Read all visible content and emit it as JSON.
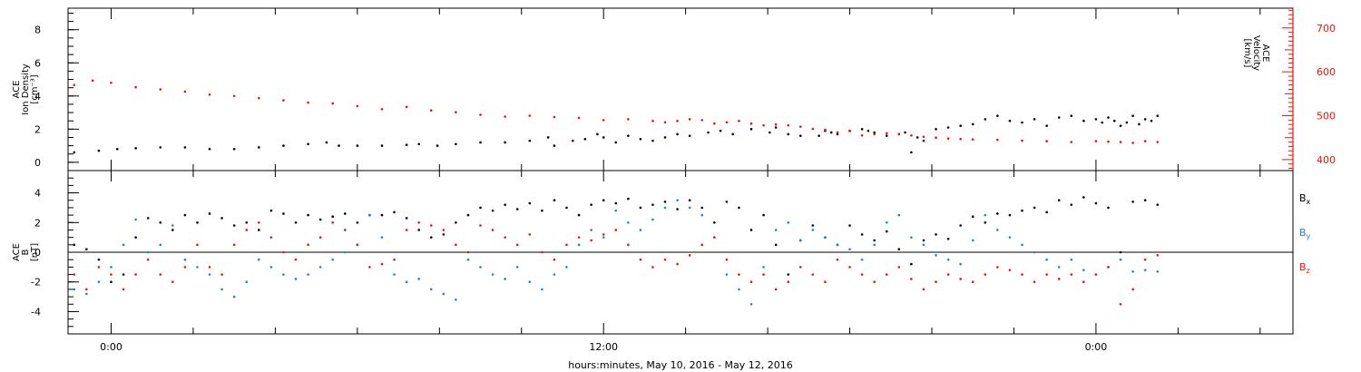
{
  "chart_data": [
    {
      "type": "scatter",
      "panel": "top",
      "ylabel": "ACE\nIon Density\n[cm⁻³]",
      "ylabel_lines": [
        "ACE",
        "Ion Density",
        "[cm⁻³]"
      ],
      "ylim": [
        -0.5,
        9.3
      ],
      "yticks": [
        0,
        2,
        4,
        6,
        8
      ],
      "y2label_lines": [
        "ACE",
        "Velocity",
        "[km/s]"
      ],
      "y2lim": [
        375,
        745
      ],
      "y2ticks": [
        400,
        500,
        600,
        700
      ],
      "series": [
        {
          "name": "",
          "axis": "left",
          "color": "#000000",
          "x": [
            -3.0,
            -1.0,
            0.5,
            2.0,
            4.0,
            6.0,
            8.0,
            10.0,
            12.0,
            14.0,
            16.0,
            17.5,
            18.5,
            20.0,
            22.0,
            24.0,
            25.0,
            26.5,
            28.0,
            30.0,
            32.0,
            34.0,
            35.5,
            36.0,
            37.5,
            38.5,
            39.5,
            40.0,
            41.0,
            42.0,
            43.0,
            44.0,
            45.0,
            46.0,
            47.0,
            48.5,
            49.5,
            50.5,
            52.0,
            53.5,
            54.0,
            55.0,
            56.0,
            57.5,
            58.0,
            58.5,
            59.0,
            60.0,
            61.0,
            61.5,
            62.0,
            63.0,
            64.0,
            64.5,
            65.0,
            65.5,
            66.0,
            67.0,
            68.0,
            69.0,
            70.0,
            71.0,
            72.0,
            73.0,
            74.0,
            75.0,
            76.0,
            77.0,
            78.0,
            79.0,
            80.0,
            80.5,
            81.0,
            81.5,
            82.0,
            82.5,
            83.0,
            83.5,
            84.0,
            84.5,
            85.0
          ],
          "y": [
            0.6,
            0.7,
            0.8,
            0.85,
            0.9,
            0.9,
            0.8,
            0.8,
            0.9,
            1.0,
            1.1,
            1.2,
            1.0,
            1.0,
            1.0,
            1.05,
            1.1,
            1.0,
            1.1,
            1.2,
            1.2,
            1.3,
            1.5,
            1.0,
            1.3,
            1.4,
            1.7,
            1.5,
            1.2,
            1.6,
            1.4,
            1.3,
            1.5,
            1.7,
            1.6,
            1.8,
            1.9,
            1.7,
            2.0,
            1.8,
            2.1,
            1.7,
            1.6,
            1.6,
            1.9,
            1.8,
            1.7,
            1.9,
            2.0,
            1.9,
            1.8,
            1.6,
            1.7,
            1.8,
            0.6,
            1.5,
            1.3,
            2.0,
            2.1,
            2.2,
            2.3,
            2.6,
            2.8,
            2.5,
            2.4,
            2.6,
            2.2,
            2.7,
            2.8,
            2.5,
            2.6,
            2.4,
            2.7,
            2.5,
            2.2,
            2.4,
            2.8,
            2.3,
            2.6,
            2.5,
            2.8
          ]
        },
        {
          "name": "",
          "axis": "right",
          "color": "#e8140c",
          "x": [
            -3.0,
            -1.5,
            0.0,
            2.0,
            4.0,
            6.0,
            8.0,
            10.0,
            12.0,
            14.0,
            16.0,
            18.0,
            20.0,
            22.0,
            24.0,
            26.0,
            28.0,
            30.0,
            32.0,
            34.0,
            36.0,
            38.0,
            40.0,
            42.0,
            44.0,
            45.0,
            46.0,
            47.0,
            48.0,
            49.0,
            50.0,
            51.0,
            52.0,
            53.0,
            54.0,
            55.0,
            56.0,
            57.0,
            58.0,
            59.0,
            60.0,
            61.0,
            62.0,
            63.0,
            64.0,
            65.0,
            66.0,
            67.0,
            68.0,
            69.0,
            70.0,
            72.0,
            74.0,
            76.0,
            78.0,
            80.0,
            81.0,
            82.0,
            83.0,
            84.0,
            85.0
          ],
          "y": [
            570,
            580,
            575,
            565,
            560,
            555,
            548,
            545,
            540,
            535,
            530,
            528,
            522,
            515,
            520,
            512,
            508,
            502,
            498,
            500,
            497,
            495,
            490,
            492,
            488,
            485,
            488,
            492,
            490,
            482,
            485,
            488,
            482,
            478,
            480,
            478,
            475,
            470,
            468,
            462,
            465,
            455,
            458,
            460,
            458,
            455,
            452,
            450,
            448,
            447,
            446,
            445,
            443,
            442,
            440,
            442,
            441,
            440,
            438,
            442,
            440
          ]
        }
      ]
    },
    {
      "type": "scatter",
      "panel": "bottom",
      "ylabel": "ACE\nB\n[nT]",
      "ylabel_lines": [
        "ACE",
        "B",
        "[nT]"
      ],
      "ylim": [
        -5.5,
        5.5
      ],
      "yticks": [
        -4,
        -2,
        0,
        2,
        4
      ],
      "zero_line": true,
      "xlabel": "hours:minutes, May 10, 2016 - May 12, 2016",
      "xlim": [
        -3.5,
        96
      ],
      "xticks": [
        0,
        40,
        80
      ],
      "xticklabels": [
        "0:00",
        "12:00",
        "0:00"
      ],
      "series": [
        {
          "name": "B",
          "subscript": "x",
          "color": "#000000",
          "x": [
            -3.0,
            -2.0,
            -1.0,
            0.0,
            1.0,
            2.0,
            3.0,
            4.0,
            5.0,
            6.0,
            7.0,
            8.0,
            9.0,
            10.0,
            11.0,
            12.0,
            13.0,
            14.0,
            15.0,
            16.0,
            17.0,
            18.0,
            19.0,
            20.0,
            21.0,
            22.0,
            23.0,
            24.0,
            25.0,
            26.0,
            27.0,
            28.0,
            29.0,
            30.0,
            31.0,
            32.0,
            33.0,
            34.0,
            35.0,
            36.0,
            37.0,
            38.0,
            39.0,
            40.0,
            41.0,
            42.0,
            43.0,
            44.0,
            45.0,
            46.0,
            47.0,
            48.0,
            49.0,
            50.0,
            51.0,
            52.0,
            53.0,
            54.0,
            55.0,
            56.0,
            57.0,
            58.0,
            59.0,
            60.0,
            61.0,
            62.0,
            63.0,
            64.0,
            65.0,
            66.0,
            67.0,
            68.0,
            69.0,
            70.0,
            71.0,
            72.0,
            73.0,
            74.0,
            75.0,
            76.0,
            77.0,
            78.0,
            79.0,
            80.0,
            81.0,
            82.0,
            83.0,
            84.0,
            85.0
          ],
          "y": [
            0.5,
            0.2,
            -0.5,
            -2.0,
            -1.5,
            1.0,
            2.3,
            2.0,
            1.5,
            2.5,
            2.0,
            2.6,
            2.3,
            1.8,
            2.0,
            1.5,
            2.8,
            2.6,
            2.0,
            2.5,
            2.2,
            2.4,
            2.6,
            2.0,
            2.5,
            2.5,
            2.7,
            2.3,
            1.5,
            1.0,
            1.2,
            2.0,
            2.5,
            3.0,
            2.8,
            3.2,
            2.9,
            3.3,
            2.8,
            3.5,
            3.0,
            2.5,
            3.2,
            3.5,
            3.3,
            3.6,
            3.0,
            3.2,
            3.4,
            2.9,
            3.5,
            3.0,
            2.0,
            3.4,
            3.0,
            1.5,
            2.5,
            0.5,
            -1.5,
            0.8,
            1.8,
            1.0,
            0.5,
            1.8,
            1.2,
            0.8,
            1.4,
            0.2,
            -0.8,
            0.8,
            1.2,
            0.9,
            1.8,
            2.4,
            2.0,
            2.6,
            2.5,
            2.8,
            3.0,
            2.7,
            3.5,
            3.2,
            3.7,
            3.3,
            3.0,
            0.0,
            3.4,
            3.5,
            3.2
          ]
        },
        {
          "name": "B",
          "subscript": "y",
          "color": "#1a84d8",
          "x": [
            -3.0,
            -2.0,
            -1.0,
            0.0,
            1.0,
            2.0,
            3.0,
            4.0,
            5.0,
            6.0,
            7.0,
            8.0,
            9.0,
            10.0,
            11.0,
            12.0,
            13.0,
            14.0,
            15.0,
            16.0,
            17.0,
            18.0,
            19.0,
            20.0,
            21.0,
            22.0,
            23.0,
            24.0,
            25.0,
            26.0,
            27.0,
            28.0,
            29.0,
            30.0,
            31.0,
            32.0,
            33.0,
            34.0,
            35.0,
            36.0,
            37.0,
            38.0,
            39.0,
            40.0,
            41.0,
            42.0,
            43.0,
            44.0,
            45.0,
            46.0,
            47.0,
            48.0,
            49.0,
            50.0,
            51.0,
            52.0,
            53.0,
            54.0,
            55.0,
            56.0,
            57.0,
            58.0,
            59.0,
            60.0,
            61.0,
            62.0,
            63.0,
            64.0,
            65.0,
            66.0,
            67.0,
            68.0,
            69.0,
            70.0,
            71.0,
            72.0,
            73.0,
            74.0,
            75.0,
            76.0,
            77.0,
            78.0,
            79.0,
            80.0,
            81.0,
            82.0,
            83.0,
            84.0,
            85.0
          ],
          "y": [
            -2.5,
            -2.8,
            -2.0,
            -1.0,
            0.5,
            2.2,
            0.0,
            0.5,
            1.8,
            -0.5,
            -1.0,
            -1.5,
            -2.5,
            -3.0,
            -2.0,
            -0.5,
            -1.0,
            -1.5,
            -1.8,
            -1.5,
            -1.0,
            -0.5,
            0.0,
            0.5,
            2.5,
            1.0,
            -1.5,
            -2.0,
            -1.8,
            -2.5,
            -2.8,
            -3.2,
            -0.5,
            -1.0,
            -1.5,
            -1.8,
            -1.0,
            -2.0,
            -2.5,
            -1.5,
            -1.0,
            0.5,
            1.5,
            1.0,
            2.8,
            2.0,
            1.5,
            2.2,
            3.0,
            3.5,
            3.0,
            2.5,
            1.0,
            -1.5,
            -2.5,
            -3.5,
            -1.0,
            1.5,
            2.0,
            0.8,
            1.5,
            1.0,
            0.5,
            0.2,
            -0.5,
            0.5,
            2.0,
            2.5,
            1.0,
            0.5,
            -0.2,
            -0.5,
            -0.8,
            0.8,
            2.5,
            1.5,
            1.0,
            0.5,
            0.0,
            -0.5,
            -1.0,
            -0.5,
            -1.2,
            -1.5,
            -1.0,
            -0.5,
            -1.3,
            -1.2,
            -1.3
          ]
        },
        {
          "name": "B",
          "subscript": "z",
          "color": "#e8140c",
          "x": [
            -3.0,
            -2.0,
            -1.0,
            0.0,
            1.0,
            2.0,
            3.0,
            4.0,
            5.0,
            6.0,
            7.0,
            8.0,
            9.0,
            10.0,
            11.0,
            12.0,
            13.0,
            14.0,
            15.0,
            16.0,
            17.0,
            18.0,
            19.0,
            20.0,
            21.0,
            22.0,
            23.0,
            24.0,
            25.0,
            26.0,
            27.0,
            28.0,
            29.0,
            30.0,
            31.0,
            32.0,
            33.0,
            34.0,
            35.0,
            36.0,
            37.0,
            38.0,
            39.0,
            40.0,
            41.0,
            42.0,
            43.0,
            44.0,
            45.0,
            46.0,
            47.0,
            48.0,
            49.0,
            50.0,
            51.0,
            52.0,
            53.0,
            54.0,
            55.0,
            56.0,
            57.0,
            58.0,
            59.0,
            60.0,
            61.0,
            62.0,
            63.0,
            64.0,
            65.0,
            66.0,
            67.0,
            68.0,
            69.0,
            70.0,
            71.0,
            72.0,
            73.0,
            74.0,
            75.0,
            76.0,
            77.0,
            78.0,
            79.0,
            80.0,
            81.0,
            82.0,
            83.0,
            84.0,
            85.0
          ],
          "y": [
            -1.5,
            -2.5,
            -1.0,
            -1.5,
            -2.5,
            -1.5,
            -0.5,
            -1.5,
            -2.0,
            -1.0,
            0.5,
            -1.0,
            -1.5,
            0.5,
            1.5,
            2.0,
            1.0,
            0.0,
            -0.5,
            0.5,
            1.0,
            2.0,
            1.5,
            0.5,
            -1.0,
            -0.8,
            -0.5,
            1.5,
            2.0,
            1.8,
            1.5,
            0.5,
            0.0,
            1.8,
            1.5,
            1.0,
            0.5,
            1.2,
            0.0,
            -0.5,
            0.5,
            1.0,
            0.8,
            1.2,
            1.5,
            0.5,
            -0.5,
            -1.0,
            -0.5,
            -0.8,
            -0.2,
            0.5,
            1.0,
            -0.5,
            -1.5,
            -2.0,
            -1.5,
            -2.5,
            -2.0,
            -1.0,
            -1.5,
            -2.0,
            -0.5,
            -1.0,
            -1.5,
            -2.0,
            -1.5,
            -1.0,
            -1.8,
            -2.5,
            -2.0,
            -1.5,
            -1.8,
            -2.0,
            -1.5,
            -1.0,
            -1.2,
            -1.5,
            -2.0,
            -1.5,
            -1.8,
            -1.5,
            -2.0,
            -1.5,
            -1.0,
            -3.5,
            -2.5,
            -0.5,
            -0.2
          ]
        }
      ]
    }
  ]
}
